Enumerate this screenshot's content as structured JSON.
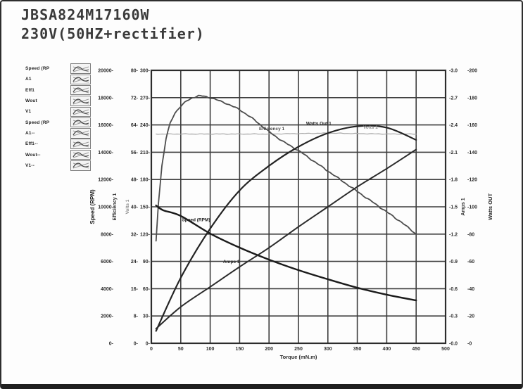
{
  "window": {
    "title_line1": "JBSA824M17160W",
    "title_line2": "230V(50HZ+rectifier)"
  },
  "legend": {
    "items": [
      {
        "label": "Speed (RP"
      },
      {
        "label": "A1"
      },
      {
        "label": "Eff1"
      },
      {
        "label": "Wout"
      },
      {
        "label": "V1"
      },
      {
        "label": "Speed (RP"
      },
      {
        "label": "A1--"
      },
      {
        "label": "Eff1--"
      },
      {
        "label": "Wout--"
      },
      {
        "label": "V1--"
      }
    ]
  },
  "chart_data": {
    "type": "line",
    "title": "",
    "xlabel": "Torque (mN.m)",
    "grid": true,
    "x_axis": {
      "label": "Torque (mN.m)",
      "min": 0,
      "max": 500,
      "tick_step": 50
    },
    "left_axes": [
      {
        "name": "speed",
        "label": "Speed (RPM)",
        "min": 0,
        "max": 20000,
        "tick_step": 2000,
        "decimals": 0
      },
      {
        "name": "efficiency",
        "label": "Efficiency 1",
        "min": 0,
        "max": 80,
        "tick_step": 8,
        "decimals": 0
      },
      {
        "name": "volts",
        "label": "Volts 1",
        "min": 0,
        "max": 300,
        "tick_step": 30,
        "decimals": 0
      }
    ],
    "right_axes": [
      {
        "name": "amps",
        "label": "Amps 1",
        "min": 0,
        "max": 3.0,
        "tick_step": 0.3,
        "decimals": 1
      },
      {
        "name": "watts",
        "label": "Watts OUT",
        "min": 0,
        "max": 200,
        "tick_step": 20,
        "decimals": 0
      }
    ],
    "series": [
      {
        "name": "Volts 1",
        "axis": "volts",
        "color": "#a8a8a8",
        "width": 1.2,
        "noisy": true,
        "noise_amp": 0.5,
        "points": [
          [
            8,
            230
          ],
          [
            100,
            230
          ],
          [
            200,
            230
          ],
          [
            300,
            231
          ],
          [
            400,
            230
          ],
          [
            450,
            230
          ]
        ]
      },
      {
        "name": "Efficiency 1",
        "axis": "efficiency",
        "color": "#4d4d4d",
        "width": 1.8,
        "noisy": true,
        "noise_amp": 1.1,
        "points": [
          [
            8,
            30
          ],
          [
            12,
            41
          ],
          [
            18,
            52
          ],
          [
            25,
            60
          ],
          [
            32,
            64.5
          ],
          [
            40,
            67.5
          ],
          [
            50,
            69.5
          ],
          [
            60,
            71
          ],
          [
            70,
            72
          ],
          [
            80,
            72.5
          ],
          [
            90,
            72.4
          ],
          [
            100,
            72
          ],
          [
            125,
            70.5
          ],
          [
            150,
            68.5
          ],
          [
            175,
            65.5
          ],
          [
            200,
            62
          ],
          [
            225,
            59
          ],
          [
            250,
            56.5
          ],
          [
            275,
            53.5
          ],
          [
            300,
            50.5
          ],
          [
            325,
            47.5
          ],
          [
            350,
            44.5
          ],
          [
            375,
            41.5
          ],
          [
            400,
            38.5
          ],
          [
            425,
            35.5
          ],
          [
            450,
            32
          ]
        ]
      },
      {
        "name": "Speed (RPM)",
        "axis": "speed",
        "color": "#1b1b1b",
        "width": 2.4,
        "points": [
          [
            8,
            10100
          ],
          [
            20,
            9750
          ],
          [
            50,
            9330
          ],
          [
            100,
            8040
          ],
          [
            150,
            7010
          ],
          [
            200,
            6130
          ],
          [
            250,
            5360
          ],
          [
            300,
            4690
          ],
          [
            350,
            4070
          ],
          [
            400,
            3560
          ],
          [
            450,
            3140
          ]
        ]
      },
      {
        "name": "Watts Out 1",
        "axis": "watts",
        "color": "#242424",
        "width": 2.2,
        "points": [
          [
            8,
            9
          ],
          [
            50,
            48
          ],
          [
            100,
            84
          ],
          [
            150,
            112
          ],
          [
            200,
            130
          ],
          [
            250,
            144
          ],
          [
            300,
            154
          ],
          [
            350,
            159
          ],
          [
            400,
            158
          ],
          [
            450,
            149
          ]
        ]
      },
      {
        "name": "Amps 1",
        "axis": "amps",
        "color": "#2b2b2b",
        "width": 2.0,
        "points": [
          [
            8,
            0.16
          ],
          [
            50,
            0.4
          ],
          [
            100,
            0.62
          ],
          [
            150,
            0.84
          ],
          [
            200,
            1.05
          ],
          [
            250,
            1.28
          ],
          [
            300,
            1.5
          ],
          [
            350,
            1.72
          ],
          [
            400,
            1.92
          ],
          [
            450,
            2.13
          ]
        ]
      }
    ],
    "curve_labels": [
      {
        "text": "Speed (RPM)",
        "axis": "speed",
        "t": 52,
        "v": 8950,
        "color": "#1d1d1d"
      },
      {
        "text": "Amps 1",
        "axis": "amps",
        "t": 122,
        "v": 0.88,
        "color": "#2b2b2b"
      },
      {
        "text": "Efficiency 1",
        "axis": "efficiency",
        "t": 183,
        "v": 62.5,
        "color": "#4a4a4a"
      },
      {
        "text": "Watts Out 1",
        "axis": "watts",
        "t": 263,
        "v": 160,
        "color": "#242424"
      },
      {
        "text": "Volts 1",
        "axis": "volts",
        "t": 360,
        "v": 236,
        "color": "#8f8f8f"
      }
    ]
  }
}
